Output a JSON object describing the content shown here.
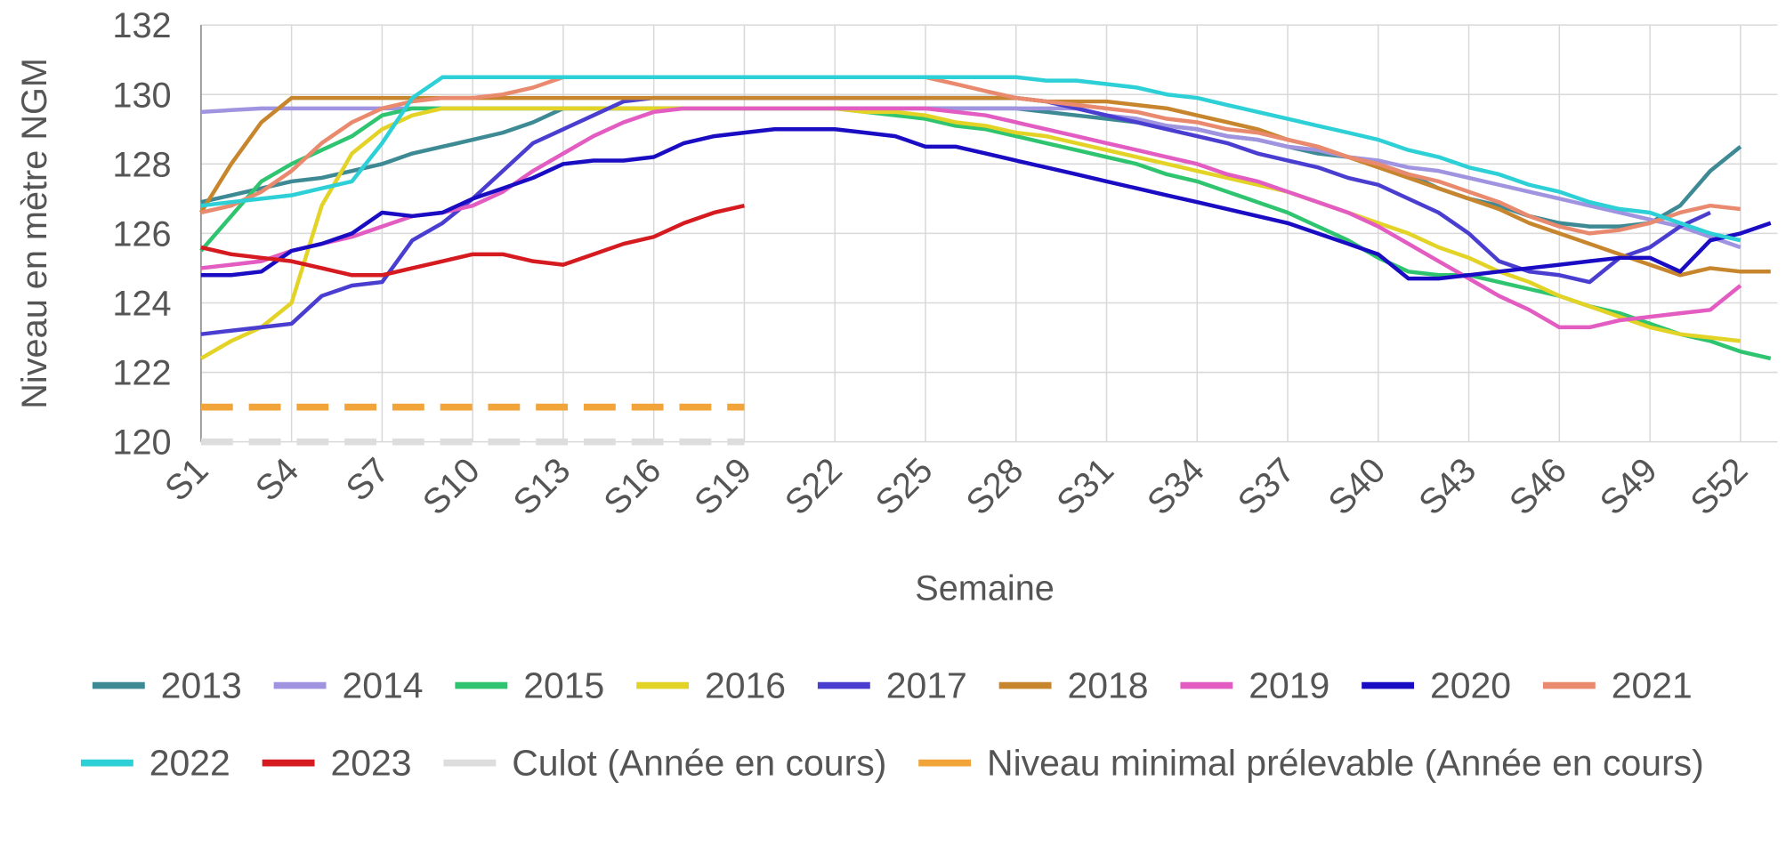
{
  "chart_data": {
    "type": "line",
    "x_label": "Semaine",
    "y_label": "Niveau en mètre NGM",
    "categories": [
      "S1",
      null,
      null,
      "S4",
      null,
      null,
      "S7",
      null,
      null,
      "S10",
      null,
      null,
      "S13",
      null,
      null,
      "S16",
      null,
      null,
      "S19",
      null,
      null,
      "S22",
      null,
      null,
      "S25",
      null,
      null,
      "S28",
      null,
      null,
      "S31",
      null,
      null,
      "S34",
      null,
      null,
      "S37",
      null,
      null,
      "S40",
      null,
      null,
      "S43",
      null,
      null,
      "S46",
      null,
      null,
      "S49",
      null,
      null,
      "S52",
      null
    ],
    "ylim": [
      120,
      132
    ],
    "yticks": [
      120,
      122,
      124,
      126,
      128,
      130,
      132
    ],
    "grid": true,
    "legend": "bottom",
    "series": [
      {
        "name": "2013",
        "color": "#3d8a95",
        "values": [
          126.9,
          127.1,
          127.3,
          127.5,
          127.6,
          127.8,
          128.0,
          128.3,
          128.5,
          128.7,
          128.9,
          129.2,
          129.6,
          129.6,
          129.6,
          129.6,
          129.6,
          129.6,
          129.6,
          129.6,
          129.6,
          129.6,
          129.6,
          129.6,
          129.6,
          129.6,
          129.6,
          129.6,
          129.5,
          129.4,
          129.3,
          129.2,
          129.1,
          129.0,
          128.8,
          128.7,
          128.5,
          128.3,
          128.2,
          128.0,
          127.7,
          127.3,
          127.0,
          126.8,
          126.5,
          126.3,
          126.2,
          126.2,
          126.3,
          126.8,
          127.8,
          128.5,
          null
        ]
      },
      {
        "name": "2014",
        "color": "#a094e0",
        "values": [
          129.5,
          129.55,
          129.6,
          129.6,
          129.6,
          129.6,
          129.6,
          129.6,
          129.6,
          129.6,
          129.6,
          129.6,
          129.6,
          129.6,
          129.6,
          129.6,
          129.6,
          129.6,
          129.6,
          129.6,
          129.6,
          129.6,
          129.6,
          129.6,
          129.6,
          129.6,
          129.6,
          129.6,
          129.6,
          129.6,
          129.4,
          129.3,
          129.1,
          129.0,
          128.8,
          128.7,
          128.5,
          128.4,
          128.2,
          128.1,
          127.9,
          127.8,
          127.6,
          127.4,
          127.2,
          127.0,
          126.8,
          126.6,
          126.4,
          126.2,
          125.9,
          125.6,
          null
        ]
      },
      {
        "name": "2015",
        "color": "#2fc46f",
        "values": [
          125.5,
          126.5,
          127.5,
          128.0,
          128.4,
          128.8,
          129.4,
          129.6,
          129.6,
          129.6,
          129.6,
          129.6,
          129.6,
          129.6,
          129.6,
          129.6,
          129.6,
          129.6,
          129.6,
          129.6,
          129.6,
          129.6,
          129.5,
          129.4,
          129.3,
          129.1,
          129.0,
          128.8,
          128.6,
          128.4,
          128.2,
          128.0,
          127.7,
          127.5,
          127.2,
          126.9,
          126.6,
          126.2,
          125.8,
          125.3,
          124.9,
          124.8,
          124.8,
          124.6,
          124.4,
          124.2,
          123.9,
          123.7,
          123.4,
          123.1,
          122.9,
          122.6,
          122.4
        ]
      },
      {
        "name": "2016",
        "color": "#e3d326",
        "values": [
          122.4,
          122.9,
          123.3,
          124.0,
          126.8,
          128.3,
          129.0,
          129.4,
          129.6,
          129.6,
          129.6,
          129.6,
          129.6,
          129.6,
          129.6,
          129.6,
          129.6,
          129.6,
          129.6,
          129.6,
          129.6,
          129.6,
          129.5,
          129.5,
          129.4,
          129.2,
          129.1,
          128.9,
          128.8,
          128.6,
          128.4,
          128.2,
          128.0,
          127.8,
          127.6,
          127.4,
          127.2,
          126.9,
          126.6,
          126.3,
          126.0,
          125.6,
          125.3,
          124.9,
          124.6,
          124.2,
          123.9,
          123.6,
          123.3,
          123.1,
          123.0,
          122.9,
          null
        ]
      },
      {
        "name": "2017",
        "color": "#4a3ed0",
        "values": [
          123.1,
          123.2,
          123.3,
          123.4,
          124.2,
          124.5,
          124.6,
          125.8,
          126.3,
          127.0,
          127.8,
          128.6,
          129.0,
          129.4,
          129.8,
          129.9,
          129.9,
          129.9,
          129.9,
          129.9,
          129.9,
          129.9,
          129.9,
          129.9,
          129.9,
          129.9,
          129.9,
          129.9,
          129.8,
          129.6,
          129.4,
          129.2,
          129.0,
          128.8,
          128.6,
          128.3,
          128.1,
          127.9,
          127.6,
          127.4,
          127.0,
          126.6,
          126.0,
          125.2,
          124.9,
          124.8,
          124.6,
          125.3,
          125.6,
          126.2,
          126.6,
          null,
          null
        ]
      },
      {
        "name": "2018",
        "color": "#c7862d",
        "values": [
          126.6,
          128.0,
          129.2,
          129.9,
          129.9,
          129.9,
          129.9,
          129.9,
          129.9,
          129.9,
          129.9,
          129.9,
          129.9,
          129.9,
          129.9,
          129.9,
          129.9,
          129.9,
          129.9,
          129.9,
          129.9,
          129.9,
          129.9,
          129.9,
          129.9,
          129.9,
          129.9,
          129.9,
          129.8,
          129.8,
          129.8,
          129.7,
          129.6,
          129.4,
          129.2,
          129.0,
          128.7,
          128.5,
          128.2,
          127.9,
          127.6,
          127.3,
          127.0,
          126.7,
          126.3,
          126.0,
          125.7,
          125.4,
          125.1,
          124.8,
          125.0,
          124.9,
          124.9
        ]
      },
      {
        "name": "2019",
        "color": "#e25cc1",
        "values": [
          125.0,
          125.1,
          125.2,
          125.5,
          125.7,
          125.9,
          126.2,
          126.5,
          126.6,
          126.8,
          127.2,
          127.8,
          128.3,
          128.8,
          129.2,
          129.5,
          129.6,
          129.6,
          129.6,
          129.6,
          129.6,
          129.6,
          129.6,
          129.6,
          129.6,
          129.5,
          129.4,
          129.2,
          129.0,
          128.8,
          128.6,
          128.4,
          128.2,
          128.0,
          127.7,
          127.5,
          127.2,
          126.9,
          126.6,
          126.2,
          125.7,
          125.2,
          124.7,
          124.2,
          123.8,
          123.3,
          123.3,
          123.5,
          123.6,
          123.7,
          123.8,
          124.5,
          null
        ]
      },
      {
        "name": "2020",
        "color": "#1a0cc2",
        "values": [
          124.8,
          124.8,
          124.9,
          125.5,
          125.7,
          126.0,
          126.6,
          126.5,
          126.6,
          127.0,
          127.3,
          127.6,
          128.0,
          128.1,
          128.1,
          128.2,
          128.6,
          128.8,
          128.9,
          129.0,
          129.0,
          129.0,
          128.9,
          128.8,
          128.5,
          128.5,
          128.3,
          128.1,
          127.9,
          127.7,
          127.5,
          127.3,
          127.1,
          126.9,
          126.7,
          126.5,
          126.3,
          126.0,
          125.7,
          125.4,
          124.7,
          124.7,
          124.8,
          124.9,
          125.0,
          125.1,
          125.2,
          125.3,
          125.3,
          124.9,
          125.8,
          126.0,
          126.3
        ]
      },
      {
        "name": "2021",
        "color": "#e9896d",
        "values": [
          126.6,
          126.8,
          127.2,
          127.8,
          128.6,
          129.2,
          129.6,
          129.8,
          129.9,
          129.9,
          130.0,
          130.2,
          130.5,
          130.5,
          130.5,
          130.5,
          130.5,
          130.5,
          130.5,
          130.5,
          130.5,
          130.5,
          130.5,
          130.5,
          130.5,
          130.3,
          130.1,
          129.9,
          129.8,
          129.7,
          129.6,
          129.5,
          129.3,
          129.2,
          129.0,
          128.9,
          128.7,
          128.5,
          128.2,
          128.0,
          127.7,
          127.5,
          127.2,
          126.9,
          126.5,
          126.2,
          126.0,
          126.1,
          126.3,
          126.6,
          126.8,
          126.7,
          null
        ]
      },
      {
        "name": "2022",
        "color": "#2dd0d6",
        "values": [
          126.8,
          126.9,
          127.0,
          127.1,
          127.3,
          127.5,
          128.6,
          129.9,
          130.5,
          130.5,
          130.5,
          130.5,
          130.5,
          130.5,
          130.5,
          130.5,
          130.5,
          130.5,
          130.5,
          130.5,
          130.5,
          130.5,
          130.5,
          130.5,
          130.5,
          130.5,
          130.5,
          130.5,
          130.4,
          130.4,
          130.3,
          130.2,
          130.0,
          129.9,
          129.7,
          129.5,
          129.3,
          129.1,
          128.9,
          128.7,
          128.4,
          128.2,
          127.9,
          127.7,
          127.4,
          127.2,
          126.9,
          126.7,
          126.6,
          126.3,
          126.0,
          125.8,
          null
        ]
      },
      {
        "name": "2023",
        "color": "#d51a20",
        "values": [
          125.6,
          125.4,
          125.3,
          125.2,
          125.0,
          124.8,
          124.8,
          125.0,
          125.2,
          125.4,
          125.4,
          125.2,
          125.1,
          125.4,
          125.7,
          125.9,
          126.3,
          126.6,
          126.8,
          null,
          null,
          null,
          null,
          null,
          null,
          null,
          null,
          null,
          null,
          null,
          null,
          null,
          null,
          null,
          null,
          null,
          null,
          null,
          null,
          null,
          null,
          null,
          null,
          null,
          null,
          null,
          null,
          null,
          null,
          null,
          null,
          null,
          null
        ]
      },
      {
        "name": "Culot (Année en cours)",
        "color": "#dddddd",
        "dashed": true,
        "values": [
          120,
          120,
          120,
          120,
          120,
          120,
          120,
          120,
          120,
          120,
          120,
          120,
          120,
          120,
          120,
          120,
          120,
          120,
          120,
          null,
          null,
          null,
          null,
          null,
          null,
          null,
          null,
          null,
          null,
          null,
          null,
          null,
          null,
          null,
          null,
          null,
          null,
          null,
          null,
          null,
          null,
          null,
          null,
          null,
          null,
          null,
          null,
          null,
          null,
          null,
          null,
          null,
          null
        ]
      },
      {
        "name": "Niveau minimal prélevable (Année en cours)",
        "color": "#f0a43a",
        "dashed": true,
        "values": [
          121,
          121,
          121,
          121,
          121,
          121,
          121,
          121,
          121,
          121,
          121,
          121,
          121,
          121,
          121,
          121,
          121,
          121,
          121,
          null,
          null,
          null,
          null,
          null,
          null,
          null,
          null,
          null,
          null,
          null,
          null,
          null,
          null,
          null,
          null,
          null,
          null,
          null,
          null,
          null,
          null,
          null,
          null,
          null,
          null,
          null,
          null,
          null,
          null,
          null,
          null,
          null,
          null
        ]
      }
    ]
  }
}
